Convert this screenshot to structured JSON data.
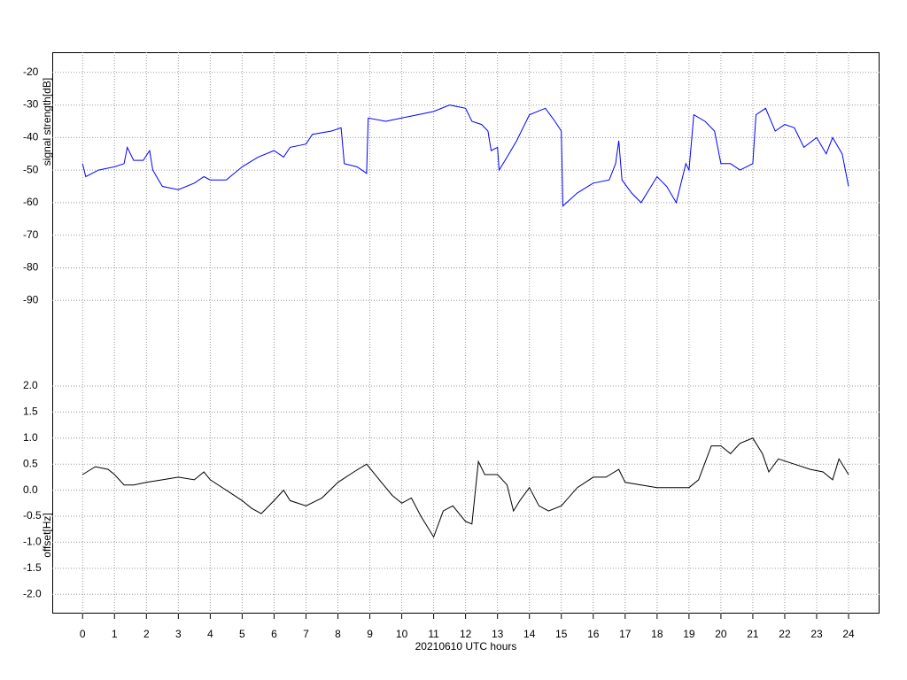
{
  "chart_data": {
    "type": "line",
    "xlabel": "20210610 UTC hours",
    "grid": true,
    "xlim": [
      -0.95,
      24.97
    ],
    "xticks": [
      0,
      1,
      2,
      3,
      4,
      5,
      6,
      7,
      8,
      9,
      10,
      11,
      12,
      13,
      14,
      15,
      16,
      17,
      18,
      19,
      20,
      21,
      22,
      23,
      24
    ],
    "panels": [
      {
        "ylabel": "signal strength[dB]",
        "label_color": "#0000ff",
        "ylim": [
          -100,
          -13.8
        ],
        "yticks": [
          -20,
          -30,
          -40,
          -50,
          -60,
          -70,
          -80,
          -90
        ],
        "series": [
          {
            "color": "#0000ff",
            "x": [
              0,
              0.1,
              0.5,
              1,
              1.3,
              1.4,
              1.6,
              1.9,
              2.1,
              2.2,
              2.5,
              3,
              3.5,
              3.8,
              4,
              4.5,
              5,
              5.5,
              6,
              6.3,
              6.5,
              7,
              7.2,
              7.8,
              8.1,
              8.2,
              8.6,
              8.9,
              8.95,
              9.5,
              10,
              10.5,
              11,
              11.5,
              12,
              12.2,
              12.5,
              12.7,
              12.8,
              13,
              13.05,
              13.3,
              13.6,
              14,
              14.5,
              14.8,
              15,
              15.05,
              15.5,
              16,
              16.5,
              16.7,
              16.8,
              16.9,
              17.2,
              17.5,
              18,
              18.3,
              18.6,
              18.9,
              19,
              19.15,
              19.5,
              19.8,
              20,
              20.3,
              20.6,
              21,
              21.1,
              21.4,
              21.7,
              22,
              22.3,
              22.6,
              23,
              23.3,
              23.5,
              23.8,
              24
            ],
            "values": [
              -48,
              -52,
              -50,
              -49,
              -48,
              -43,
              -47,
              -47,
              -44,
              -50,
              -55,
              -56,
              -54,
              -52,
              -53,
              -53,
              -49,
              -46,
              -44,
              -46,
              -43,
              -42,
              -39,
              -38,
              -37,
              -48,
              -49,
              -51,
              -34,
              -35,
              -34,
              -33,
              -32,
              -30,
              -31,
              -35,
              -36,
              -38,
              -44,
              -43,
              -50,
              -46,
              -41,
              -33,
              -31,
              -35,
              -38,
              -61,
              -57,
              -54,
              -53,
              -48,
              -41,
              -53,
              -57,
              -60,
              -52,
              -55,
              -60,
              -48,
              -50,
              -33,
              -35,
              -38,
              -48,
              -48,
              -50,
              -48,
              -33,
              -31,
              -38,
              -36,
              -37,
              -43,
              -40,
              -45,
              -40,
              -45,
              -55
            ]
          }
        ]
      },
      {
        "ylabel": "offset[Hz]",
        "label_color": "#000000",
        "ylim": [
          -2.37,
          3.02
        ],
        "yticks": [
          {
            "value": 2,
            "label": "2.0"
          },
          1.5,
          {
            "value": 1,
            "label": "1.0"
          },
          0.5,
          {
            "value": 0,
            "label": "0.0"
          },
          -0.5,
          {
            "value": -1,
            "label": "-1.0"
          },
          -1.5,
          {
            "value": -2,
            "label": "-2.0"
          }
        ],
        "series": [
          {
            "color": "#000000",
            "x": [
              0,
              0.4,
              0.8,
              1,
              1.3,
              1.6,
              2,
              2.5,
              3,
              3.5,
              3.8,
              4,
              4.5,
              5,
              5.3,
              5.6,
              6,
              6.3,
              6.5,
              7,
              7.5,
              8,
              8.5,
              8.9,
              9.3,
              9.7,
              10,
              10.3,
              10.6,
              11,
              11.3,
              11.6,
              12,
              12.2,
              12.4,
              12.6,
              13,
              13.3,
              13.5,
              13.7,
              14,
              14.3,
              14.6,
              15,
              15.5,
              16,
              16.4,
              16.8,
              17,
              17.5,
              18,
              18.5,
              19,
              19.3,
              19.7,
              20,
              20.3,
              20.6,
              21,
              21.3,
              21.5,
              21.8,
              22.3,
              22.8,
              23.2,
              23.5,
              23.7,
              24
            ],
            "values": [
              0.3,
              0.45,
              0.4,
              0.3,
              0.1,
              0.1,
              0.15,
              0.2,
              0.25,
              0.2,
              0.35,
              0.2,
              0,
              -0.2,
              -0.35,
              -0.45,
              -0.2,
              0,
              -0.2,
              -0.3,
              -0.15,
              0.15,
              0.35,
              0.5,
              0.2,
              -0.1,
              -0.25,
              -0.15,
              -0.5,
              -0.9,
              -0.4,
              -0.3,
              -0.6,
              -0.65,
              0.55,
              0.3,
              0.3,
              0.1,
              -0.4,
              -0.2,
              0.05,
              -0.3,
              -0.4,
              -0.3,
              0.05,
              0.25,
              0.25,
              0.4,
              0.15,
              0.1,
              0.05,
              0.05,
              0.05,
              0.2,
              0.85,
              0.85,
              0.7,
              0.9,
              1,
              0.7,
              0.35,
              0.6,
              0.5,
              0.4,
              0.35,
              0.2,
              0.6,
              0.3
            ]
          }
        ]
      }
    ]
  }
}
